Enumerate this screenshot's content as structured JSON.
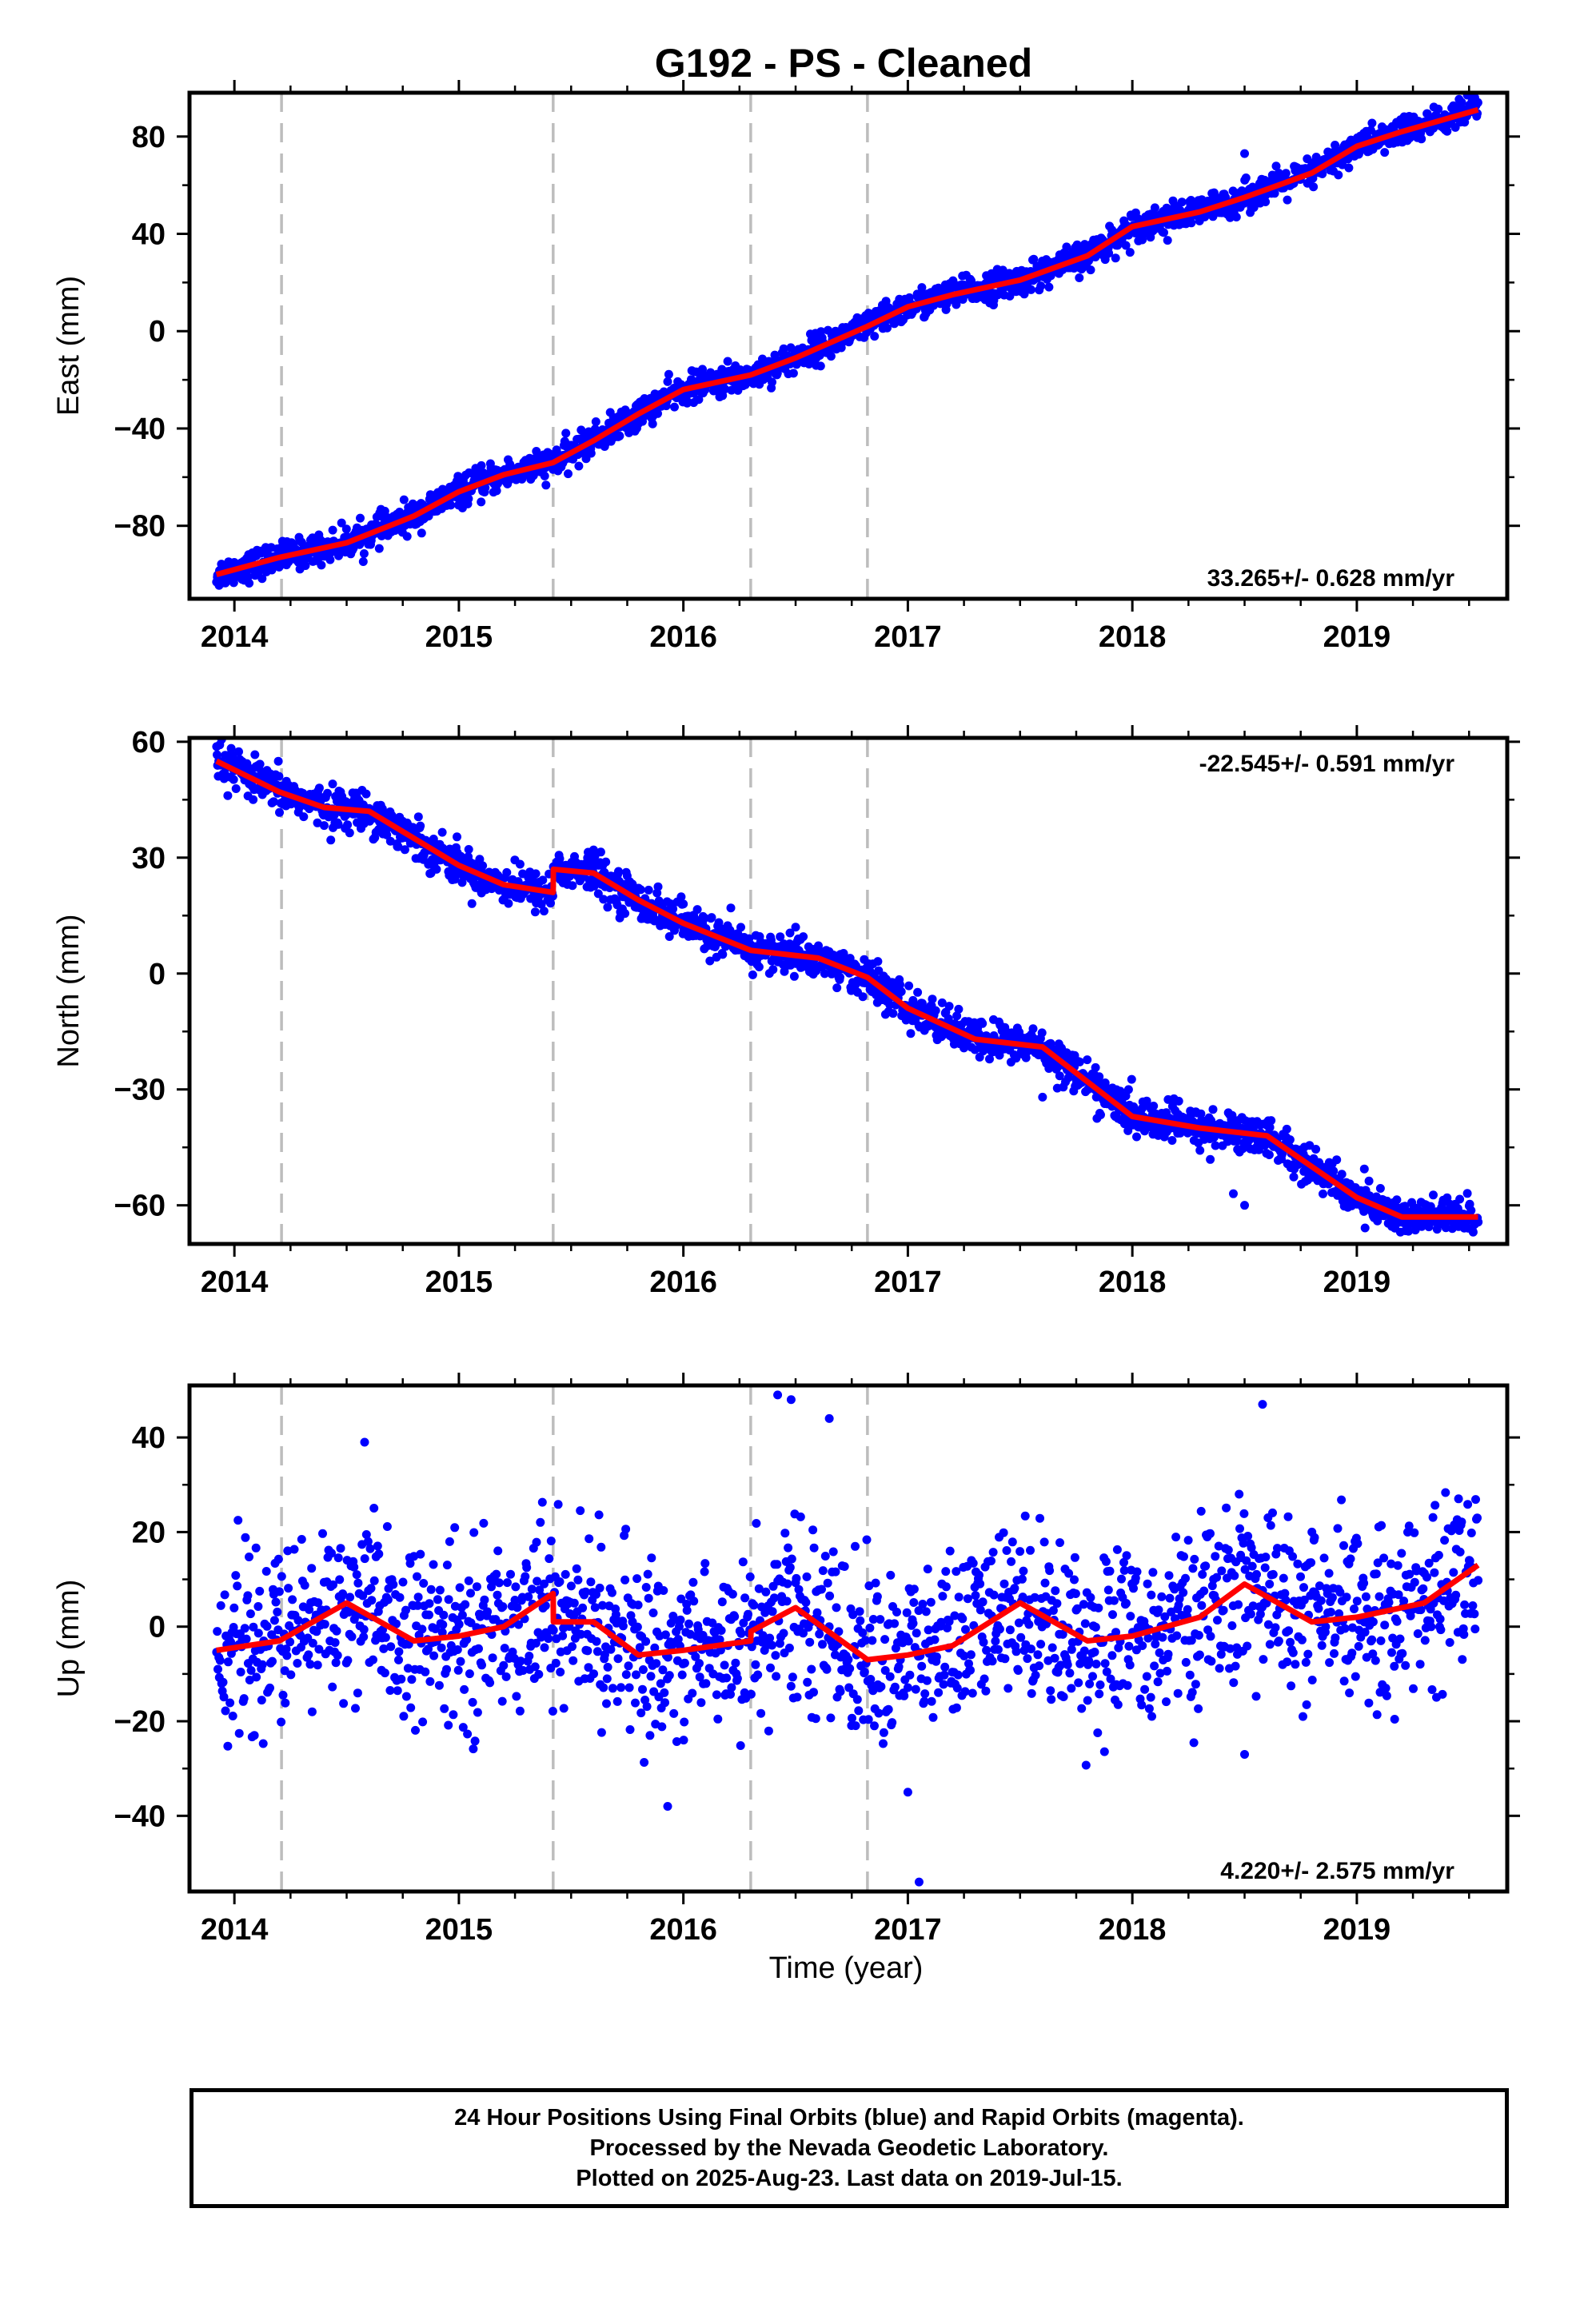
{
  "title": "G192  - PS - Cleaned",
  "time_label": "Time (year)",
  "footer": {
    "line1": "24 Hour Positions Using Final Orbits (blue) and Rapid Orbits (magenta).",
    "line2": "Processed by the Nevada Geodetic Laboratory.",
    "line3": "Plotted on 2025-Aug-23. Last data on 2019-Jul-15."
  },
  "colors": {
    "observations": "#0000ff",
    "model": "#ff0000",
    "offset_lines": "#bdbdbd"
  },
  "chart_data": [
    {
      "type": "scatter",
      "component": "east",
      "ylabel": "East (mm)",
      "rate_label": "33.265+/- 0.628 mm/yr",
      "rate_position": "bottom-right",
      "xlim": [
        2013.8,
        2019.67
      ],
      "ylim": [
        -110,
        98
      ],
      "xticks": [
        2014,
        2015,
        2016,
        2017,
        2018,
        2019
      ],
      "yticks": [
        -80,
        -40,
        0,
        40,
        80
      ],
      "offset_epochs": [
        2014.21,
        2015.42,
        2016.3,
        2016.82
      ],
      "model_x": [
        2013.92,
        2014.2,
        2014.5,
        2014.8,
        2015.0,
        2015.2,
        2015.42,
        2015.6,
        2015.8,
        2016.0,
        2016.3,
        2016.5,
        2016.82,
        2017.0,
        2017.2,
        2017.5,
        2017.8,
        2018.0,
        2018.3,
        2018.5,
        2018.8,
        2019.0,
        2019.2,
        2019.54
      ],
      "model_y": [
        -100,
        -93,
        -87,
        -76,
        -66,
        -59,
        -54,
        -45,
        -34,
        -24,
        -18,
        -11,
        2,
        10,
        15,
        21,
        31,
        43,
        49,
        55,
        65,
        76,
        82,
        91
      ],
      "scatter": 3.0,
      "outliers": [
        [
          2018.5,
          73
        ]
      ]
    },
    {
      "type": "scatter",
      "component": "north",
      "ylabel": "North (mm)",
      "rate_label": "-22.545+/- 0.591 mm/yr",
      "rate_position": "top-right",
      "xlim": [
        2013.8,
        2019.67
      ],
      "ylim": [
        -70,
        61
      ],
      "xticks": [
        2014,
        2015,
        2016,
        2017,
        2018,
        2019
      ],
      "yticks": [
        -60,
        -30,
        0,
        30,
        60
      ],
      "offset_epochs": [
        2014.21,
        2015.42,
        2016.3,
        2016.82
      ],
      "model_x": [
        2013.92,
        2014.2,
        2014.4,
        2014.6,
        2014.8,
        2015.0,
        2015.2,
        2015.42,
        2015.421,
        2015.6,
        2015.8,
        2016.0,
        2016.3,
        2016.6,
        2016.82,
        2017.0,
        2017.3,
        2017.6,
        2017.8,
        2018.0,
        2018.3,
        2018.6,
        2018.8,
        2019.0,
        2019.2,
        2019.54
      ],
      "model_y": [
        55,
        47,
        43,
        42,
        35,
        28,
        23,
        21,
        27,
        26,
        19,
        13,
        6,
        4,
        -1,
        -9,
        -17,
        -19,
        -28,
        -37,
        -40,
        -42,
        -50,
        -58,
        -63,
        -63
      ],
      "scatter": 2.5,
      "outliers": [
        [
          2015.6,
          32
        ],
        [
          2016.5,
          12
        ],
        [
          2017.6,
          -32
        ],
        [
          2018.5,
          -60
        ],
        [
          2018.45,
          -57
        ],
        [
          2016.0,
          18
        ]
      ]
    },
    {
      "type": "scatter",
      "component": "up",
      "ylabel": "Up (mm)",
      "rate_label": "4.220+/- 2.575 mm/yr",
      "rate_position": "bottom-right",
      "xlim": [
        2013.8,
        2019.67
      ],
      "ylim": [
        -56,
        51
      ],
      "xticks": [
        2014,
        2015,
        2016,
        2017,
        2018,
        2019
      ],
      "yticks": [
        -40,
        -20,
        0,
        20,
        40
      ],
      "offset_epochs": [
        2014.21,
        2015.42,
        2016.3,
        2016.82
      ],
      "model_x": [
        2013.92,
        2014.2,
        2014.5,
        2014.8,
        2015.0,
        2015.2,
        2015.42,
        2015.421,
        2015.6,
        2015.8,
        2016.0,
        2016.3,
        2016.301,
        2016.5,
        2016.82,
        2017.0,
        2017.2,
        2017.5,
        2017.8,
        2018.0,
        2018.3,
        2018.5,
        2018.8,
        2019.0,
        2019.3,
        2019.54
      ],
      "model_y": [
        -5,
        -3,
        5,
        -3,
        -2,
        0,
        7,
        1,
        1,
        -6,
        -5,
        -3,
        -1,
        4,
        -7,
        -6,
        -4,
        5,
        -3,
        -2,
        2,
        9,
        1,
        2,
        5,
        13
      ],
      "scatter": 9.0,
      "outliers": [
        [
          2016.42,
          49
        ],
        [
          2016.48,
          48
        ],
        [
          2016.65,
          44
        ],
        [
          2017.05,
          -54
        ],
        [
          2017.0,
          -35
        ],
        [
          2018.58,
          47
        ],
        [
          2014.58,
          39
        ],
        [
          2015.93,
          -38
        ],
        [
          2018.5,
          -27
        ]
      ]
    }
  ]
}
